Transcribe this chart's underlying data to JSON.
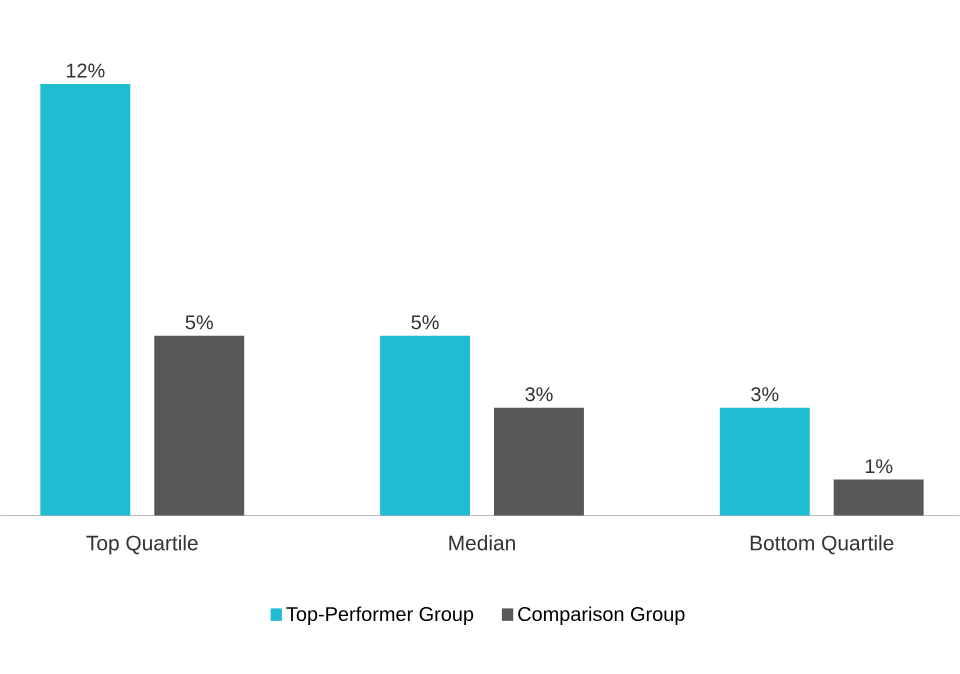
{
  "chart_data": {
    "type": "bar",
    "categories": [
      "Top Quartile",
      "Median",
      "Bottom Quartile"
    ],
    "series": [
      {
        "name": "Top-Performer Group",
        "color": "#1fbcd2",
        "values": [
          12,
          5,
          3
        ],
        "value_labels": [
          "12%",
          "5%",
          "3%"
        ]
      },
      {
        "name": "Comparison Group",
        "color": "#58585b",
        "values": [
          5,
          3,
          1
        ],
        "value_labels": [
          "5%",
          "3%",
          "1%"
        ]
      }
    ],
    "legend": "bottom"
  }
}
